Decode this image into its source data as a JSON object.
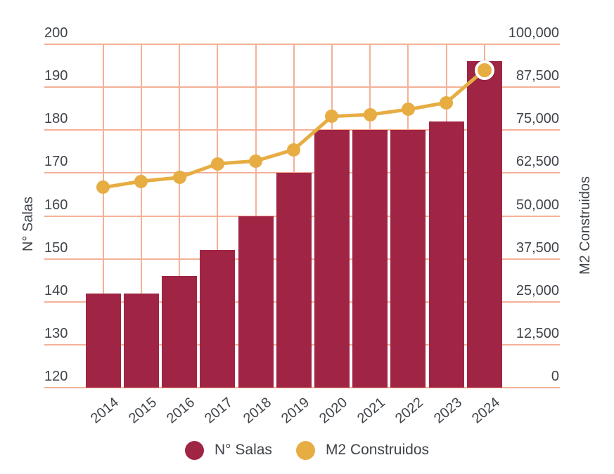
{
  "chart_data": {
    "type": "combo-bar-line",
    "categories": [
      "2014",
      "2015",
      "2016",
      "2017",
      "2018",
      "2019",
      "2020",
      "2021",
      "2022",
      "2023",
      "2024"
    ],
    "series": [
      {
        "name": "N° Salas",
        "kind": "bar",
        "axis": "left",
        "values": [
          142,
          142,
          146,
          152,
          160,
          170,
          180,
          180,
          180,
          182,
          196
        ]
      },
      {
        "name": "M2 Construidos",
        "kind": "line",
        "axis": "right",
        "values": [
          58300,
          60100,
          61200,
          65200,
          66000,
          69300,
          79000,
          79500,
          81000,
          83000,
          92500
        ],
        "last_point_highlighted": true
      }
    ],
    "ylabel_left": "N° Salas",
    "ylabel_right": "M2 Construidos",
    "y_left": {
      "min": 120,
      "max": 200,
      "ticks": [
        200,
        190,
        180,
        170,
        160,
        150,
        140,
        130,
        120
      ]
    },
    "y_right": {
      "min": 0,
      "max": 100000,
      "ticks": [
        "100,000",
        "87,500",
        "75,000",
        "62,500",
        "50,000",
        "37,500",
        "25,000",
        "12,500",
        "0"
      ]
    },
    "grid": true,
    "legend_position": "bottom",
    "title": ""
  },
  "colors": {
    "bar": "#a02444",
    "line": "#e7ad43",
    "grid": "#f4b197",
    "text": "#3f444a",
    "highlight_ring": "#ffffff",
    "background": "#ffffff"
  }
}
